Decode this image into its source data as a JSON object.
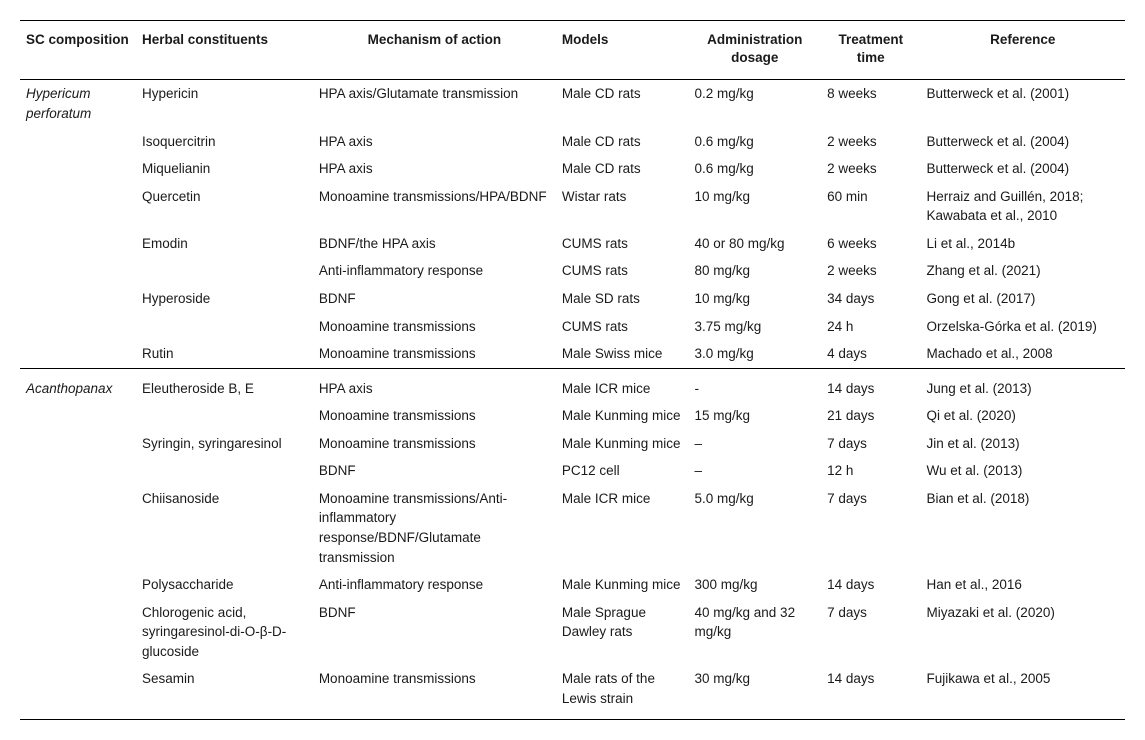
{
  "columns": {
    "sc": "SC composition",
    "herb": "Herbal constituents",
    "mech": "Mechanism of action",
    "model": "Models",
    "dose": "Administration dosage",
    "time": "Treatment time",
    "ref": "Reference"
  },
  "groups": [
    {
      "sc": "Hypericum perforatum",
      "rows": [
        {
          "herb": "Hypericin",
          "mech": "HPA axis/Glutamate transmission",
          "model": "Male CD rats",
          "dose": "0.2 mg/kg",
          "time": "8 weeks",
          "ref": "Butterweck et al. (2001)"
        },
        {
          "herb": "Isoquercitrin",
          "mech": "HPA axis",
          "model": "Male CD rats",
          "dose": "0.6 mg/kg",
          "time": "2 weeks",
          "ref": "Butterweck et al. (2004)"
        },
        {
          "herb": "Miquelianin",
          "mech": "HPA axis",
          "model": "Male CD rats",
          "dose": "0.6 mg/kg",
          "time": "2 weeks",
          "ref": "Butterweck et al. (2004)"
        },
        {
          "herb": "Quercetin",
          "mech": "Monoamine transmissions/HPA/BDNF",
          "model": "Wistar rats",
          "dose": "10 mg/kg",
          "time": "60 min",
          "ref": "Herraiz and Guillén, 2018; Kawabata et al., 2010"
        },
        {
          "herb": "Emodin",
          "mech": "BDNF/the HPA axis",
          "model": "CUMS rats",
          "dose": "40 or 80 mg/kg",
          "time": "6 weeks",
          "ref": "Li et al., 2014b"
        },
        {
          "herb": "",
          "mech": "Anti-inflammatory response",
          "model": "CUMS rats",
          "dose": "80 mg/kg",
          "time": "2 weeks",
          "ref": "Zhang et al. (2021)"
        },
        {
          "herb": "Hyperoside",
          "mech": "BDNF",
          "model": "Male SD rats",
          "dose": "10 mg/kg",
          "time": "34 days",
          "ref": "Gong et al. (2017)"
        },
        {
          "herb": "",
          "mech": "Monoamine transmissions",
          "model": "CUMS rats",
          "dose": "3.75 mg/kg",
          "time": "24 h",
          "ref": "Orzelska-Górka et al. (2019)"
        },
        {
          "herb": "Rutin",
          "mech": "Monoamine transmissions",
          "model": "Male Swiss mice",
          "dose": "3.0 mg/kg",
          "time": "4 days",
          "ref": "Machado et al., 2008"
        }
      ]
    },
    {
      "sc": "Acanthopanax",
      "rows": [
        {
          "herb": "Eleutheroside B, E",
          "mech": "HPA axis",
          "model": "Male ICR mice",
          "dose": "-",
          "time": "14 days",
          "ref": "Jung et al. (2013)"
        },
        {
          "herb": "",
          "mech": "Monoamine transmissions",
          "model": "Male Kunming mice",
          "dose": "15 mg/kg",
          "time": "21 days",
          "ref": "Qi et al. (2020)"
        },
        {
          "herb": "Syringin, syringaresinol",
          "mech": "Monoamine transmissions",
          "model": "Male Kunming mice",
          "dose": "–",
          "time": "7 days",
          "ref": "Jin et al. (2013)"
        },
        {
          "herb": "",
          "mech": "BDNF",
          "model": "PC12 cell",
          "dose": "–",
          "time": "12 h",
          "ref": "Wu et al. (2013)"
        },
        {
          "herb": "Chiisanoside",
          "mech": "Monoamine transmissions/Anti-inflammatory response/BDNF/Glutamate transmission",
          "model": "Male ICR mice",
          "dose": "5.0 mg/kg",
          "time": "7 days",
          "ref": "Bian et al. (2018)"
        },
        {
          "herb": "Polysaccharide",
          "mech": "Anti-inflammatory response",
          "model": "Male Kunming mice",
          "dose": "300 mg/kg",
          "time": "14 days",
          "ref": "Han et al., 2016"
        },
        {
          "herb": "Chlorogenic acid, syringaresinol-di-O-β-D-glucoside",
          "mech": "BDNF",
          "model": "Male Sprague Dawley rats",
          "dose": "40 mg/kg and 32 mg/kg",
          "time": "7 days",
          "ref": "Miyazaki et al. (2020)"
        },
        {
          "herb": "Sesamin",
          "mech": "Monoamine transmissions",
          "model": "Male rats of the Lewis strain",
          "dose": "30 mg/kg",
          "time": "14 days",
          "ref": "Fujikawa et al., 2005"
        }
      ]
    }
  ]
}
